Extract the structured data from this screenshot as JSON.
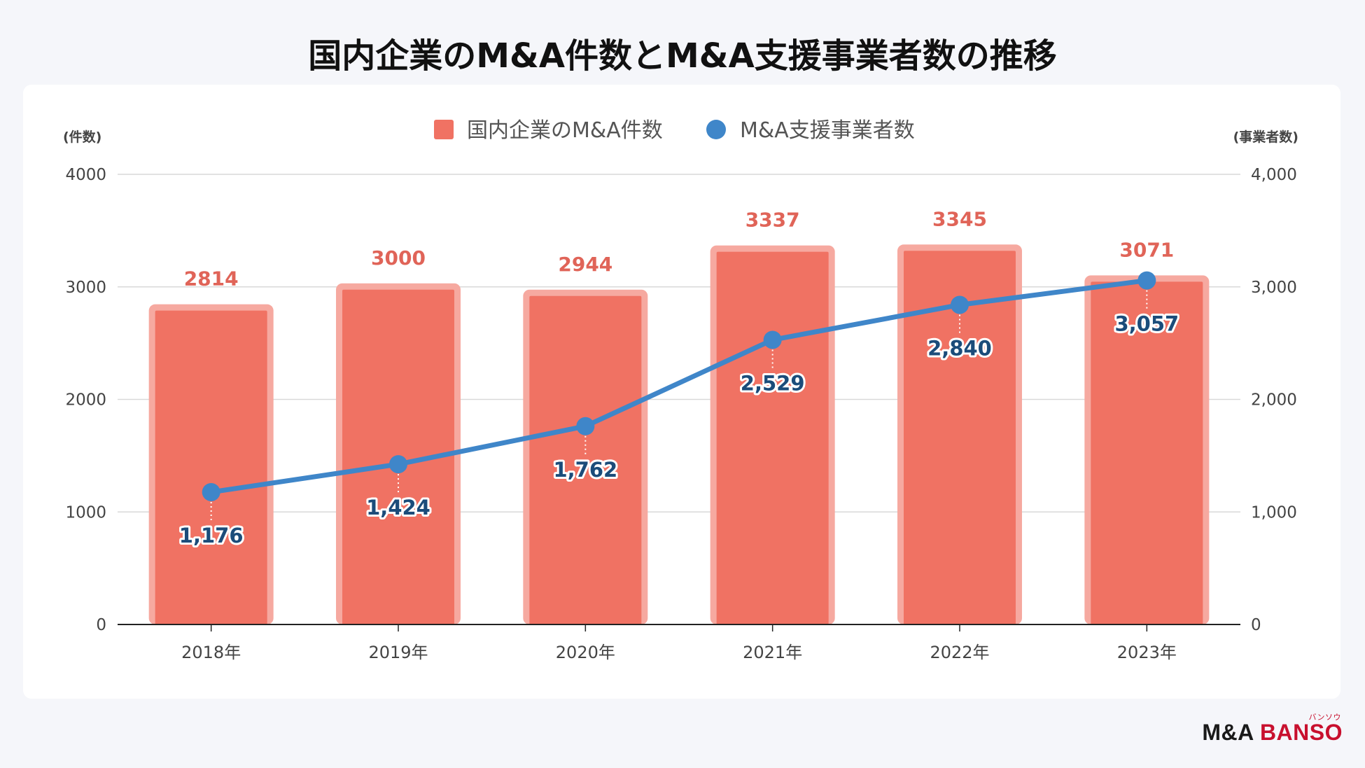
{
  "title": "国内企業のM&A件数とM&A支援事業者数の推移",
  "brand": {
    "ma": "M&A",
    "banso": "BANSO",
    "ruby": "バンソウ"
  },
  "chart_data": {
    "type": "bar",
    "categories": [
      "2018年",
      "2019年",
      "2020年",
      "2021年",
      "2022年",
      "2023年"
    ],
    "series": [
      {
        "name": "国内企業のM&A件数",
        "kind": "bar",
        "axis": "left",
        "color": "#f07263",
        "values": [
          2814,
          3000,
          2944,
          3337,
          3345,
          3071
        ],
        "labels": [
          "2814",
          "3000",
          "2944",
          "3337",
          "3345",
          "3071"
        ]
      },
      {
        "name": "M&A支援事業者数",
        "kind": "line",
        "axis": "right",
        "color": "#3f86c9",
        "values": [
          1176,
          1424,
          1762,
          2529,
          2840,
          3057
        ],
        "labels": [
          "1,176",
          "1,424",
          "1,762",
          "2,529",
          "2,840",
          "3,057"
        ]
      }
    ],
    "y_left": {
      "label": "(件数)",
      "min": 0,
      "max": 4000,
      "ticks": [
        "0",
        "1000",
        "2000",
        "3000",
        "4000"
      ]
    },
    "y_right": {
      "label": "(事業者数)",
      "min": 0,
      "max": 4000,
      "ticks": [
        "0",
        "1,000",
        "2,000",
        "3,000",
        "4,000"
      ]
    },
    "legend_position": "top-center",
    "grid": true
  }
}
